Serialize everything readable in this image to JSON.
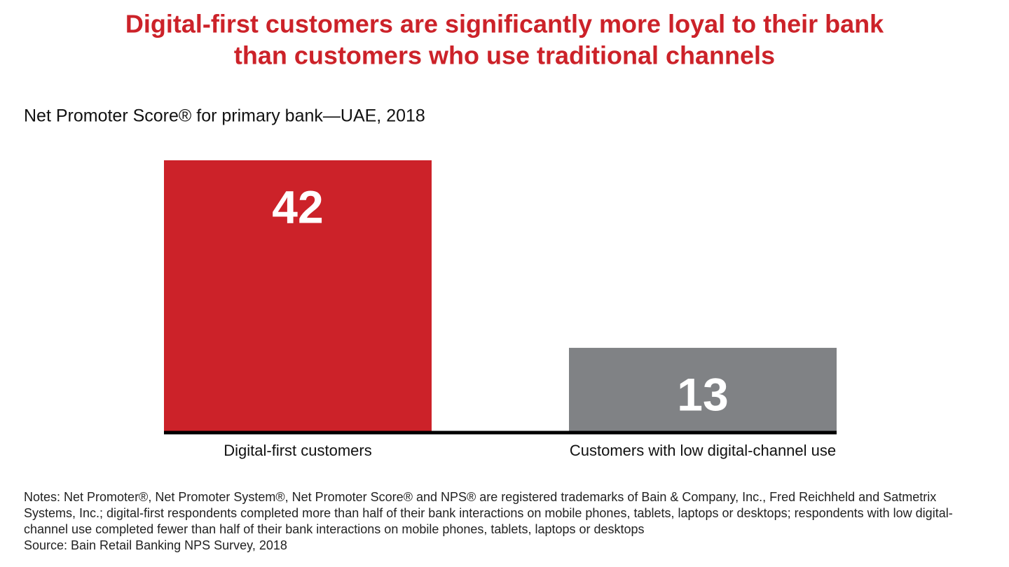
{
  "chart_data": {
    "type": "bar",
    "title": [
      "Digital-first customers are significantly more loyal to their bank",
      "than customers who use traditional channels"
    ],
    "subtitle": "Net Promoter Score® for primary bank—UAE, 2018",
    "categories": [
      "Digital-first customers",
      "Customers with low digital-channel use"
    ],
    "values": [
      42,
      13
    ],
    "colors": [
      "#cc2229",
      "#808285"
    ],
    "notes": "Notes: Net Promoter®, Net Promoter System®, Net Promoter Score® and NPS® are registered trademarks of Bain & Company, Inc., Fred Reichheld and Satmetrix Systems, Inc.; digital-first respondents completed more than half of their bank interactions on mobile phones, tablets, laptops or desktops; respondents with low digital-channel use completed fewer than half of their bank interactions on mobile phones, tablets, laptops or desktops",
    "source": "Source: Bain Retail Banking NPS Survey, 2018"
  }
}
